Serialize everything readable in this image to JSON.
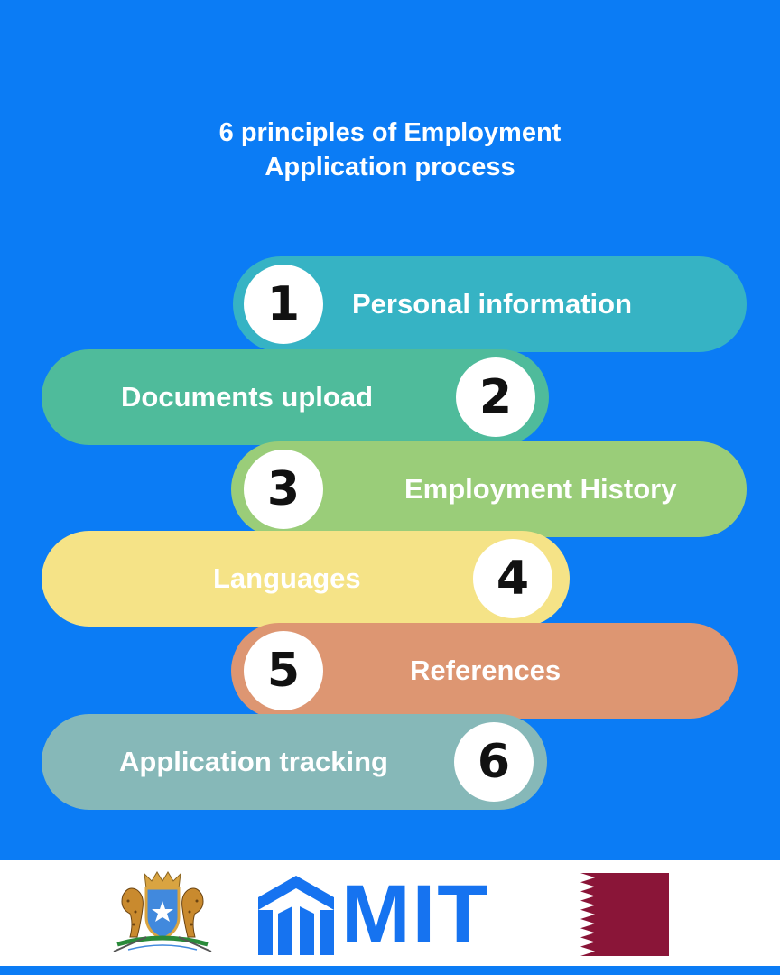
{
  "title": {
    "line1": "6 principles of Employment",
    "line2": "Application process"
  },
  "steps": [
    {
      "number": "1",
      "label": "Personal information",
      "color": "#36b3c4"
    },
    {
      "number": "2",
      "label": "Documents upload",
      "color": "#4fbb9b"
    },
    {
      "number": "3",
      "label": "Employment History",
      "color": "#9acd79"
    },
    {
      "number": "4",
      "label": "Languages",
      "color": "#f5e387"
    },
    {
      "number": "5",
      "label": "References",
      "color": "#dd9672"
    },
    {
      "number": "6",
      "label": "Application tracking",
      "color": "#86b8b8"
    }
  ],
  "footer": {
    "brand": "MIT",
    "brand_color": "#1673f0",
    "flag_colors": [
      "#ffffff",
      "#8a1538"
    ],
    "emblem_colors": [
      "#4189dd",
      "#d9a441",
      "#2a8a3a"
    ]
  }
}
